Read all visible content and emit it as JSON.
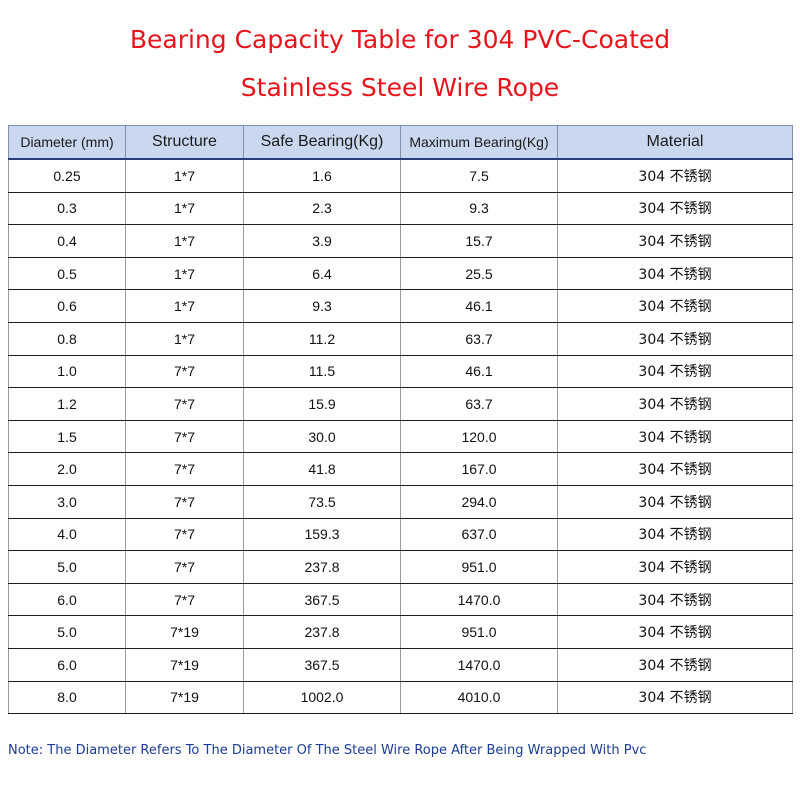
{
  "title": {
    "line1": "Bearing Capacity Table for 304 PVC-Coated",
    "line2": "Stainless Steel Wire Rope"
  },
  "colors": {
    "title": "#e8141c",
    "header_bg": "#c9d7ef",
    "note": "#1c3c96"
  },
  "table": {
    "headers": [
      "Diameter (mm)",
      "Structure",
      "Safe Bearing(Kg)",
      "Maximum Bearing(Kg)",
      "Material"
    ],
    "rows": [
      [
        "0.25",
        "1*7",
        "1.6",
        "7.5",
        "304 不锈钢"
      ],
      [
        "0.3",
        "1*7",
        "2.3",
        "9.3",
        "304 不锈钢"
      ],
      [
        "0.4",
        "1*7",
        "3.9",
        "15.7",
        "304 不锈钢"
      ],
      [
        "0.5",
        "1*7",
        "6.4",
        "25.5",
        "304 不锈钢"
      ],
      [
        "0.6",
        "1*7",
        "9.3",
        "46.1",
        "304 不锈钢"
      ],
      [
        "0.8",
        "1*7",
        "11.2",
        "63.7",
        "304 不锈钢"
      ],
      [
        "1.0",
        "7*7",
        "11.5",
        "46.1",
        "304 不锈钢"
      ],
      [
        "1.2",
        "7*7",
        "15.9",
        "63.7",
        "304 不锈钢"
      ],
      [
        "1.5",
        "7*7",
        "30.0",
        "120.0",
        "304 不锈钢"
      ],
      [
        "2.0",
        "7*7",
        "41.8",
        "167.0",
        "304 不锈钢"
      ],
      [
        "3.0",
        "7*7",
        "73.5",
        "294.0",
        "304 不锈钢"
      ],
      [
        "4.0",
        "7*7",
        "159.3",
        "637.0",
        "304 不锈钢"
      ],
      [
        "5.0",
        "7*7",
        "237.8",
        "951.0",
        "304 不锈钢"
      ],
      [
        "6.0",
        "7*7",
        "367.5",
        "1470.0",
        "304 不锈钢"
      ],
      [
        "5.0",
        "7*19",
        "237.8",
        "951.0",
        "304 不锈钢"
      ],
      [
        "6.0",
        "7*19",
        "367.5",
        "1470.0",
        "304 不锈钢"
      ],
      [
        "8.0",
        "7*19",
        "1002.0",
        "4010.0",
        "304 不锈钢"
      ]
    ]
  },
  "note": "Note: The Diameter Refers To The Diameter Of The Steel Wire Rope After Being Wrapped With Pvc"
}
